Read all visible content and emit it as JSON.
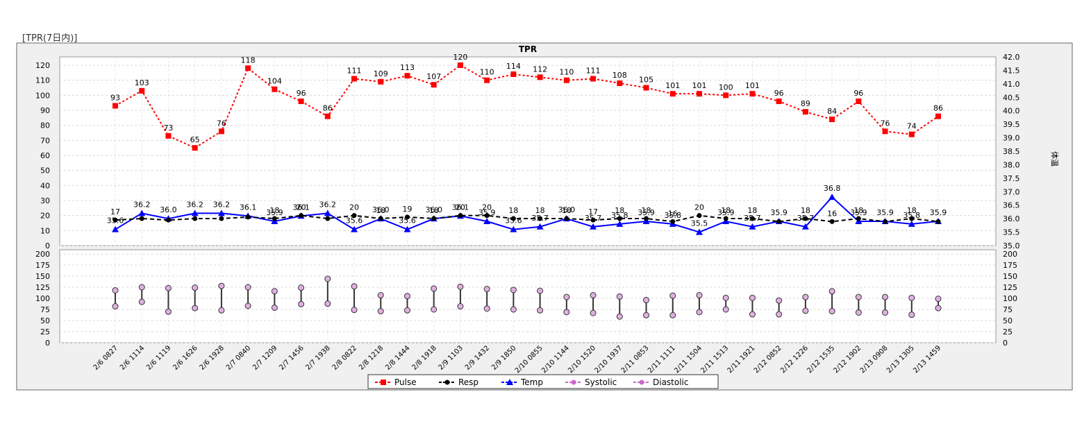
{
  "panel_title": "[TPR(7日内)]",
  "chart_data": {
    "type": "line",
    "title": "TPR",
    "right_axis_label": "体温",
    "categories": [
      "2/6 0827",
      "2/6 1114",
      "2/6 1119",
      "2/6 1626",
      "2/6 1928",
      "2/7 0840",
      "2/7 1209",
      "2/7 1456",
      "2/7 1938",
      "2/8 0822",
      "2/8 1218",
      "2/8 1444",
      "2/8 1918",
      "2/9 1103",
      "2/9 1432",
      "2/9 1850",
      "2/10 0855",
      "2/10 1144",
      "2/10 1520",
      "2/10 1937",
      "2/11 0853",
      "2/11 1111",
      "2/11 1504",
      "2/11 1513",
      "2/11 1921",
      "2/12 0852",
      "2/12 1226",
      "2/12 1535",
      "2/12 1902",
      "2/13 0908",
      "2/13 1305",
      "2/13 1459"
    ],
    "upper_left_axis": {
      "min": 0,
      "max": 120,
      "ticks": [
        0,
        10,
        20,
        30,
        40,
        50,
        60,
        70,
        80,
        90,
        100,
        110,
        120
      ]
    },
    "upper_right_axis": {
      "min": 35.0,
      "max": 42.0,
      "ticks": [
        "35.0",
        "35.5",
        "36.0",
        "36.5",
        "37.0",
        "37.5",
        "38.0",
        "38.5",
        "39.0",
        "39.5",
        "40.0",
        "40.5",
        "41.0",
        "41.5",
        "42.0"
      ]
    },
    "lower_axis": {
      "min": 0,
      "max": 200,
      "ticks": [
        0,
        25,
        50,
        75,
        100,
        125,
        150,
        175,
        200
      ]
    },
    "series": [
      {
        "name": "Pulse",
        "color": "#ff0000",
        "marker": "square",
        "axis": "left",
        "values": [
          93,
          103,
          73,
          65,
          76,
          118,
          104,
          96,
          86,
          111,
          109,
          113,
          107,
          120,
          110,
          114,
          112,
          110,
          111,
          108,
          105,
          101,
          101,
          100,
          101,
          96,
          89,
          84,
          96,
          76,
          74,
          86
        ],
        "labels": [
          "93",
          "103",
          "73",
          "65",
          "76",
          "118",
          "104",
          "96",
          "86",
          "111",
          "109",
          "113",
          "107",
          "120",
          "110",
          "114",
          "112",
          "110",
          "111",
          "108",
          "105",
          "101",
          "101",
          "100",
          "101",
          "96",
          "89",
          "84",
          "96",
          "76",
          "74",
          "86"
        ]
      },
      {
        "name": "Resp",
        "color": "#000000",
        "marker": "circle",
        "axis": "left",
        "values": [
          17,
          18,
          17,
          18,
          18,
          19,
          18,
          20,
          18,
          20,
          18,
          19,
          18,
          20,
          20,
          18,
          18,
          18,
          17,
          18,
          18,
          16,
          20,
          18,
          18,
          16,
          18,
          16,
          18,
          16,
          18,
          16
        ],
        "labels": [
          "17",
          "",
          "",
          "",
          "",
          "",
          "18",
          "20",
          "",
          "20",
          "18",
          "19",
          "18",
          "20",
          "20",
          "18",
          "18",
          "18",
          "17",
          "18",
          "18",
          "16",
          "20",
          "18",
          "18",
          "",
          "18",
          "16",
          "18",
          "",
          "18",
          ""
        ]
      },
      {
        "name": "Temp",
        "color": "#0000ff",
        "marker": "triangle",
        "axis": "right",
        "values": [
          35.6,
          36.2,
          36.0,
          36.2,
          36.2,
          36.1,
          35.9,
          36.1,
          36.2,
          35.6,
          36.0,
          35.6,
          36.0,
          36.1,
          35.9,
          35.6,
          35.7,
          36.0,
          35.7,
          35.8,
          35.9,
          35.8,
          35.5,
          35.9,
          35.7,
          35.9,
          35.7,
          36.8,
          35.9,
          35.9,
          35.8,
          35.9
        ],
        "labels": [
          "35.6",
          "36.2",
          "36.0",
          "36.2",
          "36.2",
          "36.1",
          "35.9",
          "36.1",
          "36.2",
          "35.6",
          "36.0",
          "35.6",
          "36.0",
          "36.1",
          "35.9",
          "35.6",
          "35.7",
          "36.0",
          "35.7",
          "35.8",
          "35.9",
          "35.8",
          "35.5",
          "35.9",
          "35.7",
          "35.9",
          "35.7",
          "36.8",
          "35.9",
          "35.9",
          "35.8",
          "35.9"
        ]
      },
      {
        "name": "Systolic",
        "color": "#cc66cc",
        "marker": "circle",
        "axis": "lower",
        "values": [
          118,
          125,
          123,
          124,
          128,
          125,
          116,
          124,
          144,
          127,
          107,
          105,
          122,
          126,
          121,
          119,
          117,
          103,
          107,
          104,
          96,
          106,
          107,
          101,
          101,
          95,
          103,
          116,
          103,
          103,
          101,
          99
        ]
      },
      {
        "name": "Diastolic",
        "color": "#cc66cc",
        "marker": "circle",
        "axis": "lower",
        "values": [
          82,
          92,
          70,
          78,
          73,
          83,
          79,
          87,
          88,
          74,
          71,
          73,
          75,
          82,
          77,
          75,
          73,
          69,
          67,
          59,
          62,
          62,
          69,
          75,
          64,
          64,
          72,
          71,
          68,
          68,
          63,
          78
        ]
      }
    ],
    "legend": [
      "Pulse",
      "Resp",
      "Temp",
      "Systolic",
      "Diastolic"
    ],
    "legend_position": "bottom-center",
    "grid": true
  }
}
